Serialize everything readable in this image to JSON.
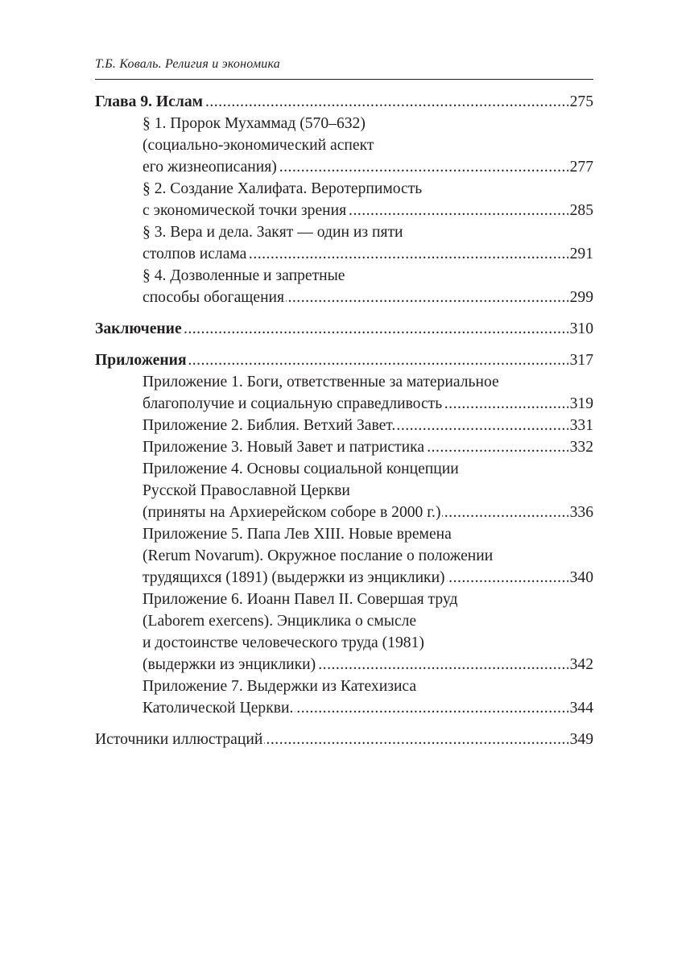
{
  "running_head": "Т.Б. Коваль. Религия и экономика",
  "toc": [
    {
      "entries": [
        {
          "bold": true,
          "indent": false,
          "lines": [
            "Глава 9. Ислам"
          ],
          "page": "275"
        },
        {
          "bold": false,
          "indent": true,
          "lines": [
            "§ 1. Пророк Мухаммад (570–632)",
            "(социально-экономический аспект",
            "его жизнеописания)"
          ],
          "page": "277"
        },
        {
          "bold": false,
          "indent": true,
          "lines": [
            "§ 2. Создание Халифата. Веротерпимость",
            "с экономической точки зрения"
          ],
          "page": "285"
        },
        {
          "bold": false,
          "indent": true,
          "lines": [
            "§ 3. Вера и дела. Закят — один из пяти",
            "столпов ислама"
          ],
          "page": "291"
        },
        {
          "bold": false,
          "indent": true,
          "lines": [
            "§ 4. Дозволенные и запретные",
            "способы обогащения"
          ],
          "page": "299"
        }
      ]
    },
    {
      "entries": [
        {
          "bold": true,
          "indent": false,
          "lines": [
            "Заключение"
          ],
          "page": "310"
        }
      ]
    },
    {
      "entries": [
        {
          "bold": true,
          "indent": false,
          "lines": [
            "Приложения"
          ],
          "page": "317"
        },
        {
          "bold": false,
          "indent": true,
          "lines": [
            "Приложение 1. Боги, ответственные за материальное",
            "благополучие и социальную справедливость"
          ],
          "page": "319"
        },
        {
          "bold": false,
          "indent": true,
          "lines": [
            "Приложение 2. Библия. Ветхий Завет."
          ],
          "page": "331"
        },
        {
          "bold": false,
          "indent": true,
          "lines": [
            "Приложение 3. Новый Завет и патристика"
          ],
          "page": "332"
        },
        {
          "bold": false,
          "indent": true,
          "lines": [
            "Приложение 4. Основы социальной концепции",
            "Русской Православной Церкви",
            "(приняты на Архиерейском соборе в 2000 г.)"
          ],
          "page": "336"
        },
        {
          "bold": false,
          "indent": true,
          "lines": [
            "Приложение 5. Папа Лев XIII. Новые времена",
            "(Rerum Novarum). Окружное послание о положении",
            "трудящихся (1891) (выдержки из энциклики)"
          ],
          "page": "340"
        },
        {
          "bold": false,
          "indent": true,
          "lines": [
            "Приложение 6. Иоанн Павел II. Совершая труд",
            "(Laborem exercens). Энциклика о смысле",
            "и достоинстве человеческого труда (1981)",
            "(выдержки из энциклики)"
          ],
          "page": "342"
        },
        {
          "bold": false,
          "indent": true,
          "lines": [
            "Приложение 7. Выдержки из Катехизиса",
            "Католической Церкви."
          ],
          "page": "344"
        }
      ]
    },
    {
      "entries": [
        {
          "bold": false,
          "indent": false,
          "lines": [
            "Источники иллюстраций"
          ],
          "page": "349"
        }
      ]
    }
  ]
}
